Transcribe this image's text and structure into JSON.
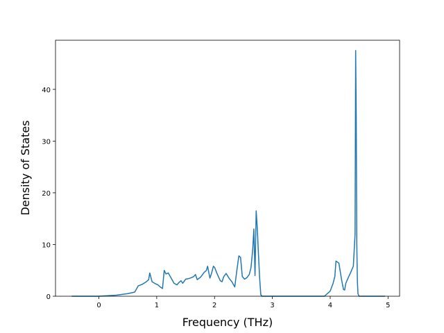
{
  "chart_data": {
    "type": "line",
    "title": "",
    "xlabel": "Frequency (THz)",
    "ylabel": "Density of States",
    "xlim": [
      -0.75,
      5.2
    ],
    "ylim": [
      0,
      49.5
    ],
    "grid": false,
    "x_ticks": [
      0,
      1,
      2,
      3,
      4,
      5
    ],
    "y_ticks": [
      0,
      10,
      20,
      30,
      40
    ],
    "colors": {
      "line": "#1f77b4"
    },
    "series": [
      {
        "x": [
          -0.47,
          0.0,
          0.3,
          0.5,
          0.62,
          0.68,
          0.75,
          0.82,
          0.86,
          0.88,
          0.92,
          0.98,
          1.02,
          1.06,
          1.1,
          1.13,
          1.16,
          1.2,
          1.25,
          1.3,
          1.35,
          1.38,
          1.42,
          1.45,
          1.5,
          1.55,
          1.6,
          1.64,
          1.67,
          1.7,
          1.75,
          1.78,
          1.82,
          1.86,
          1.88,
          1.92,
          1.95,
          1.98,
          2.0,
          2.05,
          2.1,
          2.13,
          2.16,
          2.2,
          2.25,
          2.3,
          2.35,
          2.38,
          2.42,
          2.45,
          2.48,
          2.52,
          2.56,
          2.6,
          2.63,
          2.66,
          2.68,
          2.7,
          2.72,
          2.74,
          2.76,
          2.78,
          2.8,
          2.82,
          2.9,
          3.5,
          3.9,
          4.0,
          4.05,
          4.08,
          4.1,
          4.15,
          4.2,
          4.23,
          4.25,
          4.27,
          4.3,
          4.35,
          4.4,
          4.43,
          4.44,
          4.45,
          4.46,
          4.47,
          4.48,
          4.5,
          4.6,
          4.95
        ],
        "y": [
          0,
          0,
          0.2,
          0.5,
          0.8,
          2.0,
          2.3,
          2.8,
          3.2,
          4.5,
          2.8,
          2.4,
          2.2,
          1.8,
          1.5,
          5.0,
          4.3,
          4.5,
          3.5,
          2.5,
          2.2,
          2.6,
          3.0,
          2.5,
          3.3,
          3.4,
          3.6,
          3.8,
          4.2,
          3.2,
          3.6,
          4.0,
          4.6,
          5.0,
          5.8,
          3.5,
          4.5,
          5.8,
          5.6,
          4.2,
          3.0,
          2.8,
          3.8,
          4.4,
          3.5,
          2.8,
          1.8,
          4.5,
          7.8,
          7.5,
          3.8,
          3.3,
          3.6,
          4.2,
          5.5,
          9.0,
          13.0,
          4.0,
          16.5,
          13.0,
          8.0,
          3.5,
          0.3,
          0,
          0,
          0,
          0,
          1.0,
          2.5,
          3.8,
          6.8,
          6.4,
          3.0,
          1.3,
          1.2,
          2.5,
          3.3,
          4.5,
          5.8,
          12.0,
          47.5,
          35.0,
          10.0,
          3.0,
          0.5,
          0,
          0,
          0
        ]
      }
    ]
  }
}
